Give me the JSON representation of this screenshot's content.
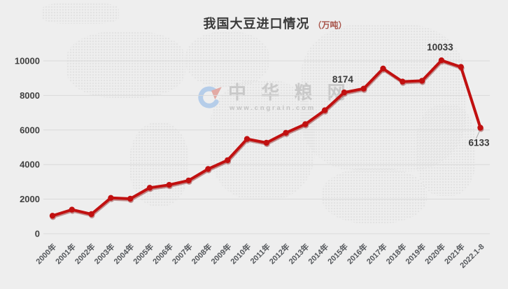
{
  "title": {
    "text": "我国大豆进口情况",
    "unit": "（万吨）"
  },
  "watermark": {
    "name": "中 华 粮 网",
    "url": "www.cngrain.com",
    "logo": "cngrain-logo"
  },
  "colors": {
    "background": "#eeeeee",
    "grid": "#d9d9d9",
    "line": "#c11010",
    "line_shadow": "#7e0202",
    "axis_text": "#414141",
    "xaxis_text": "#54575b",
    "point_label_text": "#3a3a3a",
    "title_text": "#3a3a3a",
    "unit_text": "#a8544a",
    "leader_line": "#a9a9a9",
    "watermark_text": "#c9c9c9",
    "watermark_blue": "#b5cde9",
    "watermark_red": "#e3aaa4"
  },
  "chart_data": {
    "type": "line",
    "title": "我国大豆进口情况（万吨）",
    "categories": [
      "2000年",
      "2001年",
      "2002年",
      "2003年",
      "2004年",
      "2005年",
      "2006年",
      "2007年",
      "2008年",
      "2009年",
      "2010年",
      "2011年",
      "2012年",
      "2013年",
      "2014年",
      "2015年",
      "2016年",
      "2017年",
      "2018年",
      "2019年",
      "2020年",
      "2021年",
      "2022.1-8"
    ],
    "values": [
      1042,
      1394,
      1132,
      2074,
      2023,
      2659,
      2824,
      3082,
      3744,
      4255,
      5480,
      5264,
      5838,
      6338,
      7140,
      8174,
      8391,
      9553,
      8803,
      8851,
      10033,
      9652,
      6133
    ],
    "xlabel": "",
    "ylabel": "",
    "ylim": [
      0,
      10000
    ],
    "yticks": [
      0,
      2000,
      4000,
      6000,
      8000,
      10000
    ],
    "grid": true,
    "x_label_rotation": -45,
    "legend": "none",
    "point_labels": [
      {
        "index": 15,
        "text": "8174",
        "position": "above"
      },
      {
        "index": 20,
        "text": "10033",
        "position": "above"
      },
      {
        "index": 22,
        "text": "6133",
        "position": "below"
      }
    ]
  }
}
